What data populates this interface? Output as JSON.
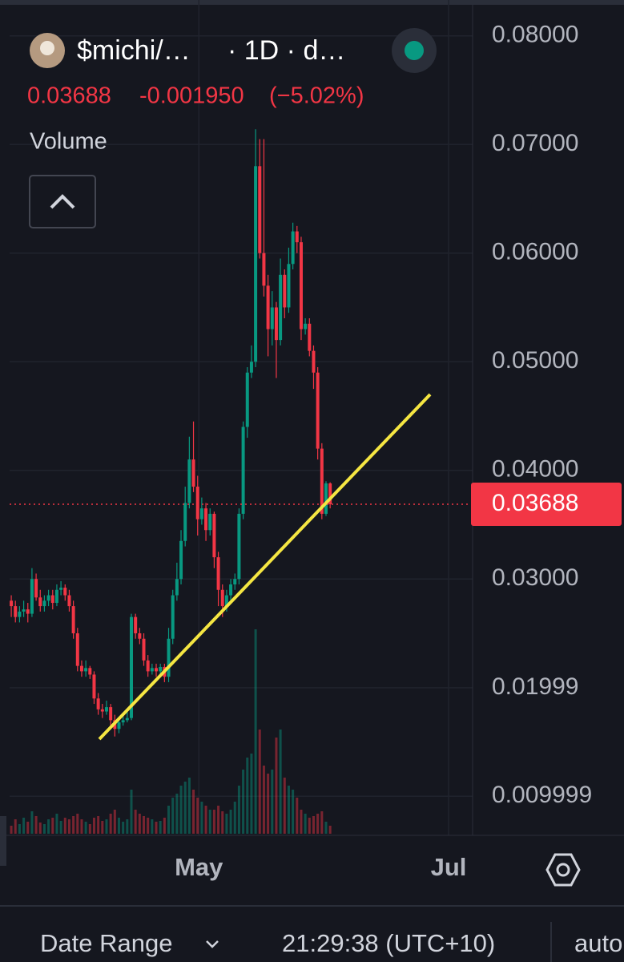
{
  "header": {
    "symbol": "$michi/…",
    "interval": "· 1D · d…",
    "price": "0.03688",
    "change": "-0.001950",
    "change_pct": "(−5.02%)",
    "indicator": "Volume"
  },
  "chart_data": {
    "type": "candlestick",
    "open": [
      0.028,
      0.0275,
      0.0265,
      0.027,
      0.0272,
      0.0268,
      0.03,
      0.0283,
      0.0275,
      0.028,
      0.0285,
      0.0278,
      0.029,
      0.0292,
      0.0285,
      0.0275,
      0.025,
      0.022,
      0.0215,
      0.0218,
      0.0212,
      0.019,
      0.018,
      0.0178,
      0.0182,
      0.017,
      0.0162,
      0.0168,
      0.017,
      0.0172,
      0.0265,
      0.025,
      0.0245,
      0.0225,
      0.0215,
      0.0218,
      0.0215,
      0.0219,
      0.021,
      0.0245,
      0.0285,
      0.03,
      0.0335,
      0.037,
      0.041,
      0.0385,
      0.0355,
      0.0365,
      0.0345,
      0.036,
      0.032,
      0.029,
      0.0275,
      0.0285,
      0.0295,
      0.03,
      0.036,
      0.044,
      0.049,
      0.05,
      0.068,
      0.06,
      0.057,
      0.053,
      0.055,
      0.052,
      0.058,
      0.055,
      0.059,
      0.062,
      0.061,
      0.053,
      0.0535,
      0.051,
      0.049,
      0.042,
      0.036,
      0.0388
    ],
    "high": [
      0.0285,
      0.028,
      0.0275,
      0.028,
      0.0278,
      0.031,
      0.0305,
      0.029,
      0.0285,
      0.029,
      0.029,
      0.0295,
      0.0298,
      0.0295,
      0.029,
      0.028,
      0.0255,
      0.0225,
      0.0225,
      0.022,
      0.0215,
      0.0195,
      0.0185,
      0.0188,
      0.0185,
      0.0175,
      0.0172,
      0.0175,
      0.0178,
      0.0268,
      0.0268,
      0.0255,
      0.025,
      0.023,
      0.0222,
      0.0222,
      0.0222,
      0.0222,
      0.0255,
      0.029,
      0.0315,
      0.0345,
      0.0385,
      0.0431,
      0.0445,
      0.0395,
      0.0375,
      0.037,
      0.0365,
      0.0362,
      0.0325,
      0.0295,
      0.029,
      0.03,
      0.0305,
      0.0365,
      0.0445,
      0.0495,
      0.0515,
      0.0714,
      0.0705,
      0.0705,
      0.058,
      0.0565,
      0.0555,
      0.0595,
      0.0585,
      0.0605,
      0.0628,
      0.0625,
      0.0615,
      0.054,
      0.054,
      0.0515,
      0.0495,
      0.0425,
      0.039,
      0.0389
    ],
    "low": [
      0.0265,
      0.026,
      0.026,
      0.0265,
      0.026,
      0.0265,
      0.028,
      0.027,
      0.027,
      0.0275,
      0.0272,
      0.0275,
      0.0285,
      0.028,
      0.027,
      0.0245,
      0.0215,
      0.021,
      0.021,
      0.0208,
      0.0185,
      0.0175,
      0.0172,
      0.0175,
      0.0165,
      0.0155,
      0.0158,
      0.0165,
      0.0168,
      0.017,
      0.0245,
      0.024,
      0.022,
      0.021,
      0.0212,
      0.021,
      0.0212,
      0.0205,
      0.0205,
      0.024,
      0.028,
      0.0295,
      0.033,
      0.0365,
      0.038,
      0.034,
      0.035,
      0.0335,
      0.034,
      0.031,
      0.0275,
      0.0265,
      0.027,
      0.028,
      0.029,
      0.0295,
      0.0355,
      0.043,
      0.0485,
      0.0495,
      0.0595,
      0.056,
      0.0505,
      0.0515,
      0.0485,
      0.0515,
      0.054,
      0.0545,
      0.0585,
      0.06,
      0.052,
      0.0525,
      0.0505,
      0.0475,
      0.041,
      0.0355,
      0.0358,
      0.0365
    ],
    "close": [
      0.0275,
      0.0265,
      0.027,
      0.0272,
      0.0268,
      0.03,
      0.0283,
      0.0275,
      0.028,
      0.0285,
      0.0278,
      0.029,
      0.0292,
      0.0285,
      0.0275,
      0.025,
      0.022,
      0.0215,
      0.0218,
      0.0212,
      0.019,
      0.018,
      0.0178,
      0.0182,
      0.017,
      0.0162,
      0.0168,
      0.017,
      0.0172,
      0.0265,
      0.025,
      0.0245,
      0.0225,
      0.0215,
      0.0218,
      0.0215,
      0.0219,
      0.021,
      0.0245,
      0.0285,
      0.03,
      0.0335,
      0.037,
      0.041,
      0.0385,
      0.0355,
      0.0365,
      0.0345,
      0.036,
      0.032,
      0.029,
      0.0275,
      0.0285,
      0.0295,
      0.03,
      0.036,
      0.044,
      0.049,
      0.05,
      0.068,
      0.06,
      0.057,
      0.053,
      0.055,
      0.052,
      0.058,
      0.055,
      0.059,
      0.062,
      0.061,
      0.053,
      0.0535,
      0.051,
      0.049,
      0.042,
      0.036,
      0.0388,
      0.03688
    ],
    "volume": [
      10,
      18,
      12,
      20,
      15,
      28,
      22,
      14,
      12,
      18,
      20,
      25,
      16,
      20,
      18,
      22,
      25,
      18,
      15,
      12,
      20,
      22,
      16,
      18,
      25,
      30,
      20,
      15,
      18,
      55,
      30,
      25,
      22,
      20,
      18,
      15,
      16,
      20,
      35,
      45,
      50,
      60,
      65,
      70,
      55,
      45,
      40,
      35,
      30,
      30,
      35,
      28,
      25,
      30,
      40,
      60,
      80,
      95,
      100,
      255,
      130,
      85,
      75,
      80,
      120,
      130,
      70,
      60,
      55,
      45,
      30,
      25,
      20,
      22,
      25,
      28,
      15,
      10
    ],
    "up_color": "#089981",
    "down_color": "#f23645",
    "ylim": [
      0.0064,
      0.0833
    ],
    "yticks": [
      {
        "value": 0.08,
        "label": "0.08000"
      },
      {
        "value": 0.07,
        "label": "0.07000"
      },
      {
        "value": 0.06,
        "label": "0.06000"
      },
      {
        "value": 0.05,
        "label": "0.05000"
      },
      {
        "value": 0.04,
        "label": "0.04000"
      },
      {
        "value": 0.03,
        "label": "0.03000"
      },
      0.01999,
      0.009999
    ],
    "xlim": [
      -0.4,
      111.4
    ],
    "xticks": [
      {
        "value": 45.3,
        "label": "May"
      },
      {
        "value": 105.6,
        "label": "Jul"
      }
    ],
    "last_price": 0.03688,
    "grid": true
  },
  "footer": {
    "date_range": "Date Range",
    "time": "21:29:38 (UTC+10)",
    "scale": "auto"
  }
}
